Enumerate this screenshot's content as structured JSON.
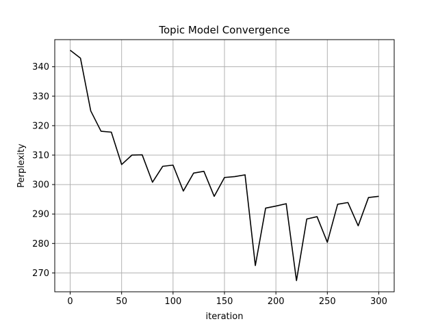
{
  "chart_data": {
    "type": "line",
    "title": "Topic Model Convergence",
    "xlabel": "iteration",
    "ylabel": "Perplexity",
    "xlim": [
      -15,
      315
    ],
    "ylim": [
      263.6,
      349.2
    ],
    "xticks": [
      0,
      50,
      100,
      150,
      200,
      250,
      300
    ],
    "yticks": [
      270,
      280,
      290,
      300,
      310,
      320,
      330,
      340
    ],
    "grid": true,
    "colors": {
      "line": "#000000",
      "grid": "#b0b0b0",
      "axes": "#000000"
    },
    "series": [
      {
        "x": [
          0,
          10,
          20,
          30,
          40,
          50,
          60,
          70,
          80,
          90,
          100,
          110,
          120,
          130,
          140,
          150,
          160,
          170,
          180,
          190,
          200,
          210,
          220,
          230,
          240,
          250,
          260,
          270,
          280,
          290,
          300
        ],
        "values": [
          345.6,
          342.9,
          325.0,
          318.1,
          317.8,
          306.8,
          310.0,
          310.1,
          300.8,
          306.2,
          306.6,
          297.8,
          303.9,
          304.5,
          296.0,
          302.4,
          302.7,
          303.3,
          272.5,
          292.0,
          292.7,
          293.5,
          267.4,
          288.3,
          289.1,
          280.4,
          293.3,
          293.9,
          286.0,
          295.6,
          296.0
        ]
      }
    ]
  }
}
